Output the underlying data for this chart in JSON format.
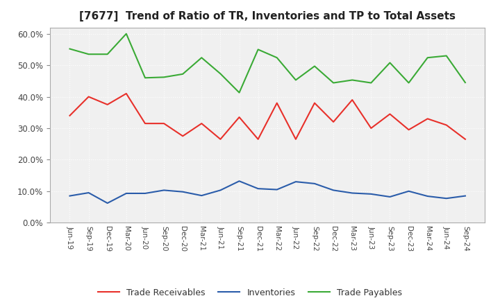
{
  "title": "[7677]  Trend of Ratio of TR, Inventories and TP to Total Assets",
  "x_labels": [
    "Jun-19",
    "Sep-19",
    "Dec-19",
    "Mar-20",
    "Jun-20",
    "Sep-20",
    "Dec-20",
    "Mar-21",
    "Jun-21",
    "Sep-21",
    "Dec-21",
    "Mar-22",
    "Jun-22",
    "Sep-22",
    "Dec-22",
    "Mar-23",
    "Jun-23",
    "Sep-23",
    "Dec-23",
    "Mar-24",
    "Jun-24",
    "Sep-24"
  ],
  "trade_receivables": [
    0.34,
    0.4,
    0.375,
    0.41,
    0.315,
    0.315,
    0.275,
    0.315,
    0.265,
    0.335,
    0.265,
    0.38,
    0.265,
    0.38,
    0.32,
    0.39,
    0.3,
    0.345,
    0.295,
    0.33,
    0.31,
    0.265
  ],
  "inventories": [
    0.085,
    0.095,
    0.062,
    0.093,
    0.093,
    0.103,
    0.098,
    0.086,
    0.103,
    0.132,
    0.108,
    0.105,
    0.13,
    0.124,
    0.103,
    0.094,
    0.091,
    0.082,
    0.1,
    0.084,
    0.077,
    0.085
  ],
  "trade_payables": [
    0.552,
    0.535,
    0.535,
    0.6,
    0.46,
    0.462,
    0.472,
    0.524,
    0.473,
    0.413,
    0.55,
    0.524,
    0.453,
    0.497,
    0.444,
    0.453,
    0.444,
    0.508,
    0.444,
    0.524,
    0.53,
    0.445
  ],
  "tr_color": "#e8302a",
  "inv_color": "#2a5caa",
  "tp_color": "#3aaa35",
  "ylim": [
    0.0,
    0.62
  ],
  "yticks": [
    0.0,
    0.1,
    0.2,
    0.3,
    0.4,
    0.5,
    0.6
  ],
  "legend_labels": [
    "Trade Receivables",
    "Inventories",
    "Trade Payables"
  ],
  "plot_bg_color": "#f0f0f0",
  "fig_bg_color": "#ffffff",
  "grid_color": "#ffffff"
}
